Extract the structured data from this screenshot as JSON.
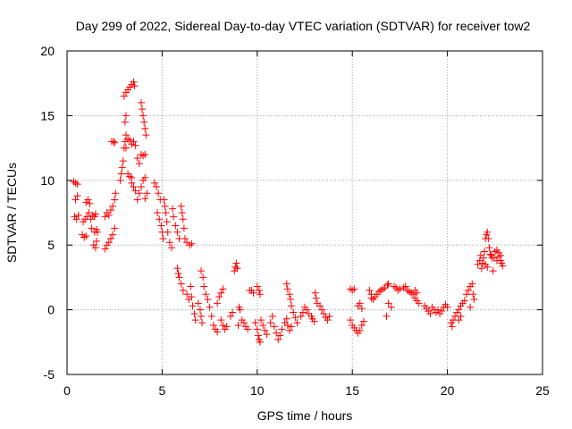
{
  "chart_data": {
    "type": "scatter",
    "title": "Day 299 of 2022, Sidereal Day-to-day VTEC variation (SDTVAR) for receiver tow2",
    "xlabel": "GPS time / hours",
    "ylabel": "SDTVAR / TECUs",
    "xlim": [
      0,
      25
    ],
    "ylim": [
      -5,
      20
    ],
    "xticks": [
      0,
      5,
      10,
      15,
      20,
      25
    ],
    "yticks": [
      -5,
      0,
      5,
      10,
      15,
      20
    ],
    "xtick_labels": [
      "0",
      "5",
      "10",
      "15",
      "20",
      "25"
    ],
    "ytick_labels": [
      "-5",
      "0",
      "5",
      "10",
      "15",
      "20"
    ],
    "grid": true,
    "marker": "plus",
    "color": "#ff0000",
    "series": [
      {
        "name": "SDTVAR",
        "points": [
          [
            0.35,
            9.9
          ],
          [
            0.45,
            9.8
          ],
          [
            0.55,
            9.7
          ],
          [
            0.4,
            7.2
          ],
          [
            0.5,
            7.0
          ],
          [
            0.6,
            7.3
          ],
          [
            0.45,
            8.5
          ],
          [
            0.55,
            8.8
          ],
          [
            0.8,
            5.8
          ],
          [
            0.9,
            5.6
          ],
          [
            1.0,
            5.7
          ],
          [
            0.85,
            6.8
          ],
          [
            0.95,
            7.0
          ],
          [
            1.05,
            7.2
          ],
          [
            1.0,
            8.3
          ],
          [
            1.1,
            8.5
          ],
          [
            1.2,
            8.2
          ],
          [
            1.15,
            7.5
          ],
          [
            1.25,
            7.0
          ],
          [
            1.3,
            6.3
          ],
          [
            1.35,
            7.3
          ],
          [
            1.45,
            7.2
          ],
          [
            1.5,
            7.4
          ],
          [
            1.4,
            5.0
          ],
          [
            1.5,
            4.8
          ],
          [
            1.55,
            5.3
          ],
          [
            1.45,
            6.0
          ],
          [
            1.55,
            6.2
          ],
          [
            1.6,
            6.0
          ],
          [
            2.0,
            4.7
          ],
          [
            2.1,
            5.0
          ],
          [
            2.2,
            5.2
          ],
          [
            2.3,
            5.5
          ],
          [
            2.4,
            5.8
          ],
          [
            2.5,
            6.3
          ],
          [
            2.0,
            7.2
          ],
          [
            2.1,
            7.5
          ],
          [
            2.2,
            7.3
          ],
          [
            2.3,
            7.7
          ],
          [
            2.4,
            8.0
          ],
          [
            2.5,
            8.5
          ],
          [
            2.55,
            9.0
          ],
          [
            2.35,
            13.0
          ],
          [
            2.45,
            13.0
          ],
          [
            2.5,
            12.9
          ],
          [
            2.8,
            10.0
          ],
          [
            2.85,
            10.5
          ],
          [
            2.9,
            11.0
          ],
          [
            2.95,
            11.5
          ],
          [
            3.0,
            12.5
          ],
          [
            3.05,
            13.0
          ],
          [
            3.1,
            13.5
          ],
          [
            3.05,
            14.5
          ],
          [
            3.1,
            15.0
          ],
          [
            3.0,
            16.5
          ],
          [
            3.1,
            16.8
          ],
          [
            3.2,
            17.0
          ],
          [
            3.3,
            17.2
          ],
          [
            3.4,
            17.4
          ],
          [
            3.5,
            17.6
          ],
          [
            3.55,
            17.3
          ],
          [
            3.1,
            12.5
          ],
          [
            3.2,
            13.2
          ],
          [
            3.3,
            13.1
          ],
          [
            3.4,
            12.8
          ],
          [
            3.5,
            13.0
          ],
          [
            3.6,
            12.7
          ],
          [
            3.4,
            9.8
          ],
          [
            3.5,
            9.5
          ],
          [
            3.6,
            9.2
          ],
          [
            3.2,
            10.5
          ],
          [
            3.3,
            10.3
          ],
          [
            3.4,
            10.2
          ],
          [
            3.7,
            11.7
          ],
          [
            3.8,
            11.3
          ],
          [
            3.9,
            12.0
          ],
          [
            4.0,
            11.9
          ],
          [
            4.1,
            12.0
          ],
          [
            3.9,
            16.0
          ],
          [
            3.95,
            15.5
          ],
          [
            4.0,
            15.0
          ],
          [
            4.05,
            14.5
          ],
          [
            4.1,
            14.0
          ],
          [
            4.15,
            13.5
          ],
          [
            3.7,
            8.5
          ],
          [
            3.8,
            9.0
          ],
          [
            3.9,
            9.5
          ],
          [
            4.0,
            10.0
          ],
          [
            4.1,
            10.2
          ],
          [
            4.1,
            8.6
          ],
          [
            4.2,
            9.0
          ],
          [
            4.6,
            9.8
          ],
          [
            4.7,
            9.5
          ],
          [
            4.8,
            9.0
          ],
          [
            4.9,
            8.5
          ],
          [
            4.75,
            7.5
          ],
          [
            4.85,
            7.0
          ],
          [
            4.95,
            6.5
          ],
          [
            5.0,
            6.0
          ],
          [
            5.05,
            5.5
          ],
          [
            5.1,
            8.5
          ],
          [
            5.15,
            8.0
          ],
          [
            5.2,
            7.5
          ],
          [
            5.25,
            6.8
          ],
          [
            5.3,
            6.0
          ],
          [
            5.4,
            5.2
          ],
          [
            5.5,
            4.8
          ],
          [
            5.55,
            7.8
          ],
          [
            5.6,
            7.2
          ],
          [
            5.7,
            6.5
          ],
          [
            5.8,
            6.0
          ],
          [
            5.9,
            5.5
          ],
          [
            6.0,
            8.0
          ],
          [
            6.05,
            7.5
          ],
          [
            6.1,
            7.0
          ],
          [
            6.15,
            6.3
          ],
          [
            6.2,
            5.5
          ],
          [
            6.3,
            5.2
          ],
          [
            6.45,
            5.0
          ],
          [
            6.55,
            5.1
          ],
          [
            5.8,
            3.2
          ],
          [
            5.85,
            2.8
          ],
          [
            5.9,
            2.5
          ],
          [
            6.0,
            2.0
          ],
          [
            6.1,
            1.5
          ],
          [
            6.3,
            1.2
          ],
          [
            6.4,
            0.8
          ],
          [
            6.5,
            1.8
          ],
          [
            6.55,
            1.0
          ],
          [
            6.6,
            0.3
          ],
          [
            6.7,
            -0.3
          ],
          [
            6.75,
            -0.8
          ],
          [
            6.9,
            0.5
          ],
          [
            7.0,
            0.0
          ],
          [
            7.05,
            -0.5
          ],
          [
            7.1,
            -1.0
          ],
          [
            7.05,
            3.0
          ],
          [
            7.15,
            2.5
          ],
          [
            7.2,
            1.8
          ],
          [
            7.3,
            1.2
          ],
          [
            7.4,
            0.8
          ],
          [
            7.5,
            0.2
          ],
          [
            7.6,
            -0.5
          ],
          [
            7.7,
            -1.2
          ],
          [
            7.8,
            -1.5
          ],
          [
            7.9,
            -1.7
          ],
          [
            7.9,
            0.5
          ],
          [
            8.0,
            1.0
          ],
          [
            8.1,
            1.3
          ],
          [
            8.2,
            1.6
          ],
          [
            8.1,
            -0.8
          ],
          [
            8.2,
            -1.2
          ],
          [
            8.3,
            -1.5
          ],
          [
            8.4,
            -1.3
          ],
          [
            8.6,
            -0.5
          ],
          [
            8.7,
            -0.2
          ],
          [
            8.8,
            3.0
          ],
          [
            8.85,
            3.3
          ],
          [
            8.9,
            3.6
          ],
          [
            8.95,
            3.2
          ],
          [
            9.05,
            0.2
          ],
          [
            9.1,
            0.0
          ],
          [
            9.2,
            -0.8
          ],
          [
            9.3,
            -1.0
          ],
          [
            9.4,
            -1.3
          ],
          [
            9.5,
            -1.5
          ],
          [
            9.0,
            -1.2
          ],
          [
            9.6,
            1.5
          ],
          [
            9.7,
            1.5
          ],
          [
            9.8,
            1.3
          ],
          [
            9.9,
            -1.0
          ],
          [
            10.0,
            -1.5
          ],
          [
            10.05,
            -2.0
          ],
          [
            10.1,
            -2.3
          ],
          [
            10.15,
            -2.5
          ],
          [
            10.0,
            1.8
          ],
          [
            10.1,
            1.5
          ],
          [
            10.15,
            1.2
          ],
          [
            10.2,
            -0.8
          ],
          [
            10.3,
            -1.2
          ],
          [
            10.4,
            -1.6
          ],
          [
            10.5,
            -1.9
          ],
          [
            10.7,
            -1.0
          ],
          [
            10.8,
            -0.5
          ],
          [
            10.9,
            -1.3
          ],
          [
            11.0,
            -1.8
          ],
          [
            11.1,
            -2.3
          ],
          [
            11.2,
            -2.0
          ],
          [
            11.3,
            -1.5
          ],
          [
            11.45,
            -1.0
          ],
          [
            11.55,
            -0.7
          ],
          [
            11.6,
            -1.2
          ],
          [
            11.7,
            -1.6
          ],
          [
            11.8,
            -1.3
          ],
          [
            11.55,
            2.0
          ],
          [
            11.6,
            1.6
          ],
          [
            11.7,
            1.2
          ],
          [
            11.75,
            0.8
          ],
          [
            11.8,
            0.3
          ],
          [
            11.9,
            -0.2
          ],
          [
            12.0,
            -0.6
          ],
          [
            12.1,
            -1.0
          ],
          [
            12.3,
            -0.5
          ],
          [
            12.4,
            -0.2
          ],
          [
            12.5,
            0.2
          ],
          [
            12.6,
            0.0
          ],
          [
            12.7,
            -0.3
          ],
          [
            12.85,
            -0.5
          ],
          [
            12.9,
            -0.7
          ],
          [
            13.0,
            -0.9
          ],
          [
            13.05,
            1.3
          ],
          [
            13.1,
            0.9
          ],
          [
            13.15,
            0.5
          ],
          [
            13.3,
            0.3
          ],
          [
            13.4,
            0.0
          ],
          [
            13.5,
            -0.3
          ],
          [
            13.6,
            -0.6
          ],
          [
            13.7,
            -0.8
          ],
          [
            13.8,
            -0.5
          ],
          [
            14.9,
            1.6
          ],
          [
            15.0,
            1.5
          ],
          [
            15.1,
            1.6
          ],
          [
            14.9,
            -0.8
          ],
          [
            15.0,
            -1.2
          ],
          [
            15.1,
            -1.4
          ],
          [
            15.2,
            -1.6
          ],
          [
            15.3,
            -1.8
          ],
          [
            15.4,
            -1.6
          ],
          [
            15.5,
            -1.2
          ],
          [
            15.6,
            -0.9
          ],
          [
            15.3,
            0.3
          ],
          [
            15.4,
            0.5
          ],
          [
            15.5,
            0.1
          ],
          [
            15.9,
            1.5
          ],
          [
            16.0,
            1.2
          ],
          [
            16.0,
            0.9
          ],
          [
            16.1,
            0.8
          ],
          [
            16.2,
            1.0
          ],
          [
            16.3,
            1.2
          ],
          [
            16.4,
            1.4
          ],
          [
            16.5,
            1.5
          ],
          [
            16.6,
            1.6
          ],
          [
            16.7,
            1.7
          ],
          [
            16.85,
            1.9
          ],
          [
            16.9,
            2.0
          ],
          [
            16.8,
            -0.5
          ],
          [
            16.9,
            0.5
          ],
          [
            17.05,
            0.2
          ],
          [
            17.2,
            1.8
          ],
          [
            17.3,
            1.7
          ],
          [
            17.4,
            1.5
          ],
          [
            17.5,
            1.6
          ],
          [
            17.7,
            1.7
          ],
          [
            17.8,
            1.8
          ],
          [
            17.9,
            1.5
          ],
          [
            18.0,
            1.4
          ],
          [
            18.1,
            1.3
          ],
          [
            18.2,
            1.2
          ],
          [
            18.3,
            0.9
          ],
          [
            18.4,
            0.7
          ],
          [
            18.5,
            0.5
          ],
          [
            18.3,
            1.5
          ],
          [
            18.4,
            1.3
          ],
          [
            18.8,
            0.3
          ],
          [
            18.9,
            0.1
          ],
          [
            19.0,
            -0.1
          ],
          [
            19.1,
            -0.3
          ],
          [
            19.2,
            0.2
          ],
          [
            19.3,
            0.0
          ],
          [
            19.4,
            -0.2
          ],
          [
            19.5,
            0.0
          ],
          [
            19.6,
            -0.3
          ],
          [
            19.7,
            -0.1
          ],
          [
            19.8,
            0.2
          ],
          [
            19.9,
            0.4
          ],
          [
            20.0,
            0.2
          ],
          [
            20.2,
            -1.0
          ],
          [
            20.25,
            -1.3
          ],
          [
            20.3,
            -0.8
          ],
          [
            20.4,
            -0.5
          ],
          [
            20.5,
            -0.2
          ],
          [
            20.6,
            0.0
          ],
          [
            20.7,
            0.3
          ],
          [
            20.6,
            -0.8
          ],
          [
            20.7,
            -0.5
          ],
          [
            20.8,
            0.5
          ],
          [
            20.9,
            0.7
          ],
          [
            21.0,
            1.2
          ],
          [
            21.1,
            1.5
          ],
          [
            21.2,
            1.8
          ],
          [
            21.3,
            2.0
          ],
          [
            21.35,
            1.2
          ],
          [
            21.4,
            0.8
          ],
          [
            21.2,
            0.2
          ],
          [
            21.6,
            3.5
          ],
          [
            21.7,
            3.8
          ],
          [
            21.75,
            4.2
          ],
          [
            21.8,
            3.2
          ],
          [
            21.85,
            3.6
          ],
          [
            21.9,
            4.0
          ],
          [
            21.95,
            4.5
          ],
          [
            22.0,
            5.5
          ],
          [
            22.05,
            5.8
          ],
          [
            22.1,
            6.0
          ],
          [
            22.15,
            5.5
          ],
          [
            22.2,
            4.8
          ],
          [
            22.25,
            4.3
          ],
          [
            22.3,
            4.2
          ],
          [
            22.35,
            4.0
          ],
          [
            22.0,
            3.5
          ],
          [
            22.1,
            3.3
          ],
          [
            22.4,
            3.0
          ],
          [
            22.45,
            4.0
          ],
          [
            22.5,
            4.5
          ],
          [
            22.6,
            3.8
          ],
          [
            22.7,
            4.1
          ],
          [
            22.8,
            3.8
          ],
          [
            22.85,
            3.6
          ],
          [
            22.9,
            3.4
          ],
          [
            22.6,
            4.6
          ],
          [
            22.7,
            4.4
          ],
          [
            22.8,
            4.2
          ]
        ]
      }
    ]
  }
}
